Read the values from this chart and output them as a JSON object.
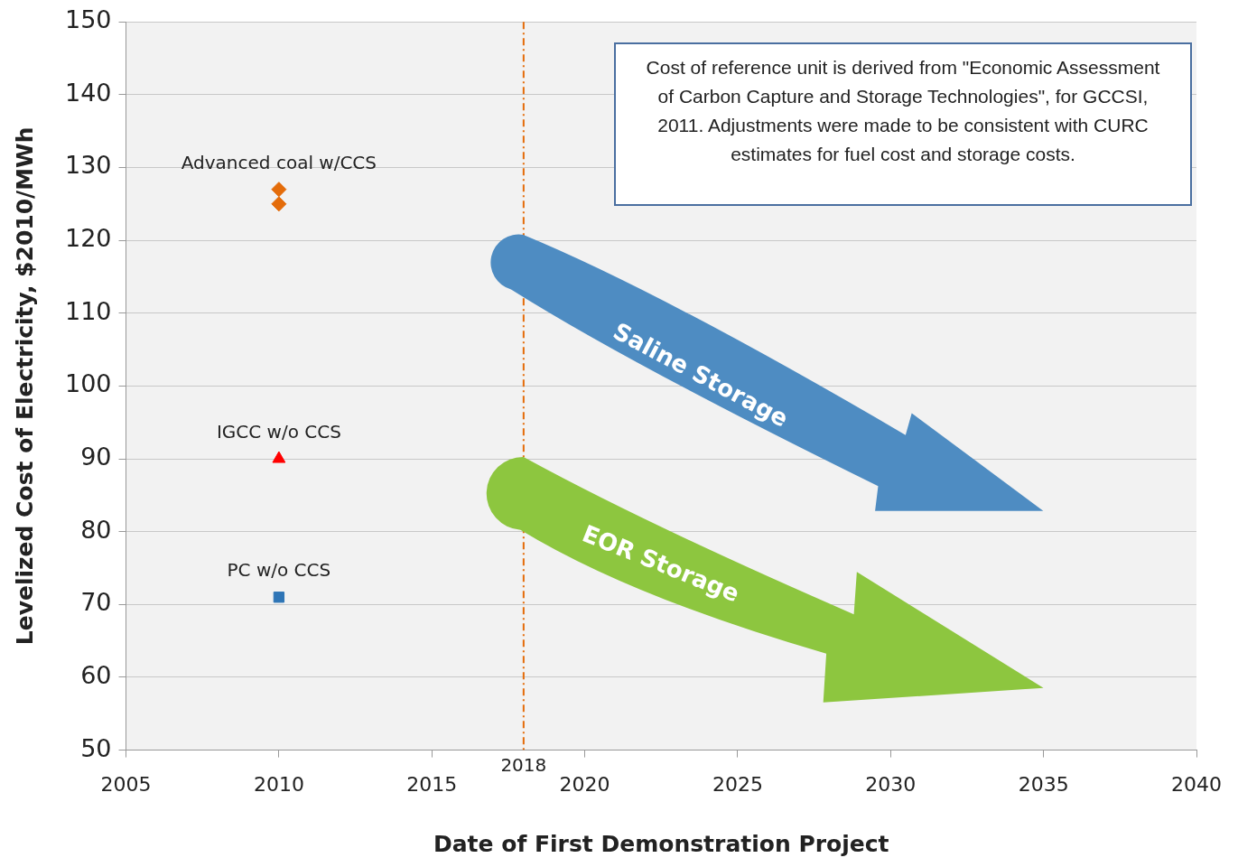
{
  "chart_data": {
    "type": "scatter",
    "xlabel": "Date of First Demonstration Project",
    "ylabel": "Levelized Cost of Electricity, $2010/MWh",
    "series": [
      {
        "name": "Advanced coal w/CCS",
        "color": "#e46c0a",
        "marker": "diamond",
        "values": [
          127,
          125
        ]
      },
      {
        "name": "IGCC w/o CCS",
        "color": "#ff0000",
        "marker": "triangle",
        "x": [
          2010
        ],
        "values": [
          90
        ]
      },
      {
        "name": "PC w/o CCS",
        "color": "#2e75b6",
        "marker": "square",
        "x": [
          2010
        ],
        "values": [
          71
        ]
      }
    ],
    "x": [
      2010,
      2010
    ],
    "xlim": [
      2005,
      2040
    ],
    "xticks": [
      2005,
      2010,
      2015,
      2020,
      2025,
      2030,
      2035,
      2040
    ],
    "ylim": [
      50,
      150
    ],
    "yticks": [
      50,
      60,
      70,
      80,
      90,
      100,
      110,
      120,
      130,
      140,
      150
    ],
    "grid": "y",
    "legend": false,
    "ref_lines": [
      {
        "axis": "x",
        "value": 2018,
        "label": "2018",
        "color": "#e46c0a",
        "line_style": "dashed"
      }
    ],
    "annotations": [
      "Cost of reference unit is derived  from \"Economic Assessment of Carbon Capture and Storage Technologies\", for GCCSI, 2011.  Adjustments were made to be consistent with CURC estimates for fuel cost and storage costs.",
      "Saline Storage",
      "EOR Storage"
    ]
  }
}
